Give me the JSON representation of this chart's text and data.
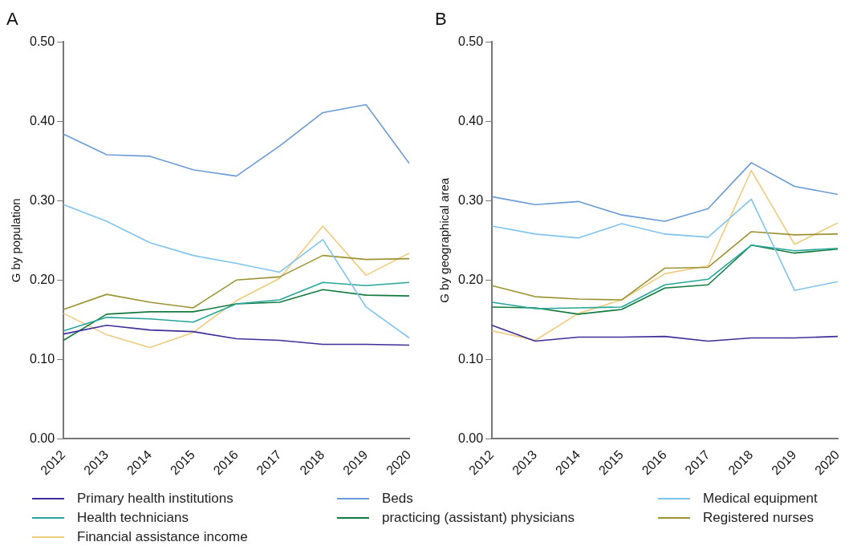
{
  "chart_data": [
    {
      "type": "line",
      "title": "A",
      "ylabel": "G by population",
      "categories": [
        "2012",
        "2013",
        "2014",
        "2015",
        "2016",
        "2017",
        "2018",
        "2019",
        "2020"
      ],
      "ylim": [
        0,
        0.5
      ],
      "yticks": [
        {
          "value": 0,
          "label": "0.00"
        },
        {
          "value": 0.1,
          "label": "0.10"
        },
        {
          "value": 0.2,
          "label": "0.20"
        },
        {
          "value": 0.3,
          "label": "0.30"
        },
        {
          "value": 0.4,
          "label": "0.40"
        },
        {
          "value": 0.5,
          "label": "0.50"
        }
      ],
      "grid": false,
      "legend": "bottom",
      "marker": "none",
      "line_style": "solid",
      "series": [
        {
          "name": "Primary health institutions",
          "color": "#3f2e9a",
          "values": [
            0.132,
            0.143,
            0.137,
            0.135,
            0.126,
            0.124,
            0.119,
            0.119,
            0.118
          ]
        },
        {
          "name": "Beds",
          "color": "#6a9bd4",
          "values": [
            0.384,
            0.358,
            0.356,
            0.339,
            0.331,
            0.369,
            0.411,
            0.421,
            0.347
          ]
        },
        {
          "name": "Medical equipment",
          "color": "#7fc4ef",
          "values": [
            0.295,
            0.274,
            0.247,
            0.231,
            0.221,
            0.21,
            0.251,
            0.166,
            0.127
          ]
        },
        {
          "name": "Health technicians",
          "color": "#26a69a",
          "values": [
            0.136,
            0.153,
            0.151,
            0.147,
            0.17,
            0.175,
            0.197,
            0.193,
            0.197
          ]
        },
        {
          "name": "practicing (assistant) physicians",
          "color": "#137a3f",
          "values": [
            0.124,
            0.157,
            0.16,
            0.16,
            0.17,
            0.172,
            0.188,
            0.181,
            0.18
          ]
        },
        {
          "name": "Registered nurses",
          "color": "#9c9232",
          "values": [
            0.163,
            0.182,
            0.172,
            0.165,
            0.2,
            0.204,
            0.231,
            0.226,
            0.227
          ]
        },
        {
          "name": "Financial assistance income",
          "color": "#efcb7d",
          "values": [
            0.158,
            0.131,
            0.115,
            0.134,
            0.174,
            0.202,
            0.268,
            0.206,
            0.234
          ]
        }
      ]
    },
    {
      "type": "line",
      "title": "B",
      "ylabel": "G by geographical area",
      "categories": [
        "2012",
        "2013",
        "2014",
        "2015",
        "2016",
        "2017",
        "2018",
        "2019",
        "2020"
      ],
      "ylim": [
        0,
        0.5
      ],
      "yticks": [
        {
          "value": 0,
          "label": "0.00"
        },
        {
          "value": 0.1,
          "label": "0.10"
        },
        {
          "value": 0.2,
          "label": "0.20"
        },
        {
          "value": 0.3,
          "label": "0.30"
        },
        {
          "value": 0.4,
          "label": "0.40"
        },
        {
          "value": 0.5,
          "label": "0.50"
        }
      ],
      "grid": false,
      "marker": "none",
      "line_style": "solid",
      "series": [
        {
          "color": "#3f2e9a",
          "values": [
            0.143,
            0.123,
            0.128,
            0.128,
            0.129,
            0.123,
            0.127,
            0.127,
            0.129
          ]
        },
        {
          "color": "#6a9bd4",
          "values": [
            0.305,
            0.295,
            0.299,
            0.282,
            0.274,
            0.29,
            0.348,
            0.318,
            0.308
          ]
        },
        {
          "color": "#7fc4ef",
          "values": [
            0.268,
            0.258,
            0.253,
            0.271,
            0.258,
            0.254,
            0.302,
            0.187,
            0.198
          ]
        },
        {
          "color": "#26a69a",
          "values": [
            0.172,
            0.164,
            0.165,
            0.166,
            0.194,
            0.201,
            0.244,
            0.237,
            0.24
          ]
        },
        {
          "color": "#137a3f",
          "values": [
            0.166,
            0.165,
            0.157,
            0.163,
            0.19,
            0.194,
            0.244,
            0.234,
            0.239
          ]
        },
        {
          "color": "#9c9232",
          "values": [
            0.193,
            0.179,
            0.176,
            0.175,
            0.215,
            0.216,
            0.261,
            0.257,
            0.258
          ]
        },
        {
          "color": "#efcb7d",
          "values": [
            0.136,
            0.124,
            0.158,
            0.175,
            0.208,
            0.218,
            0.338,
            0.245,
            0.272
          ]
        }
      ]
    }
  ]
}
